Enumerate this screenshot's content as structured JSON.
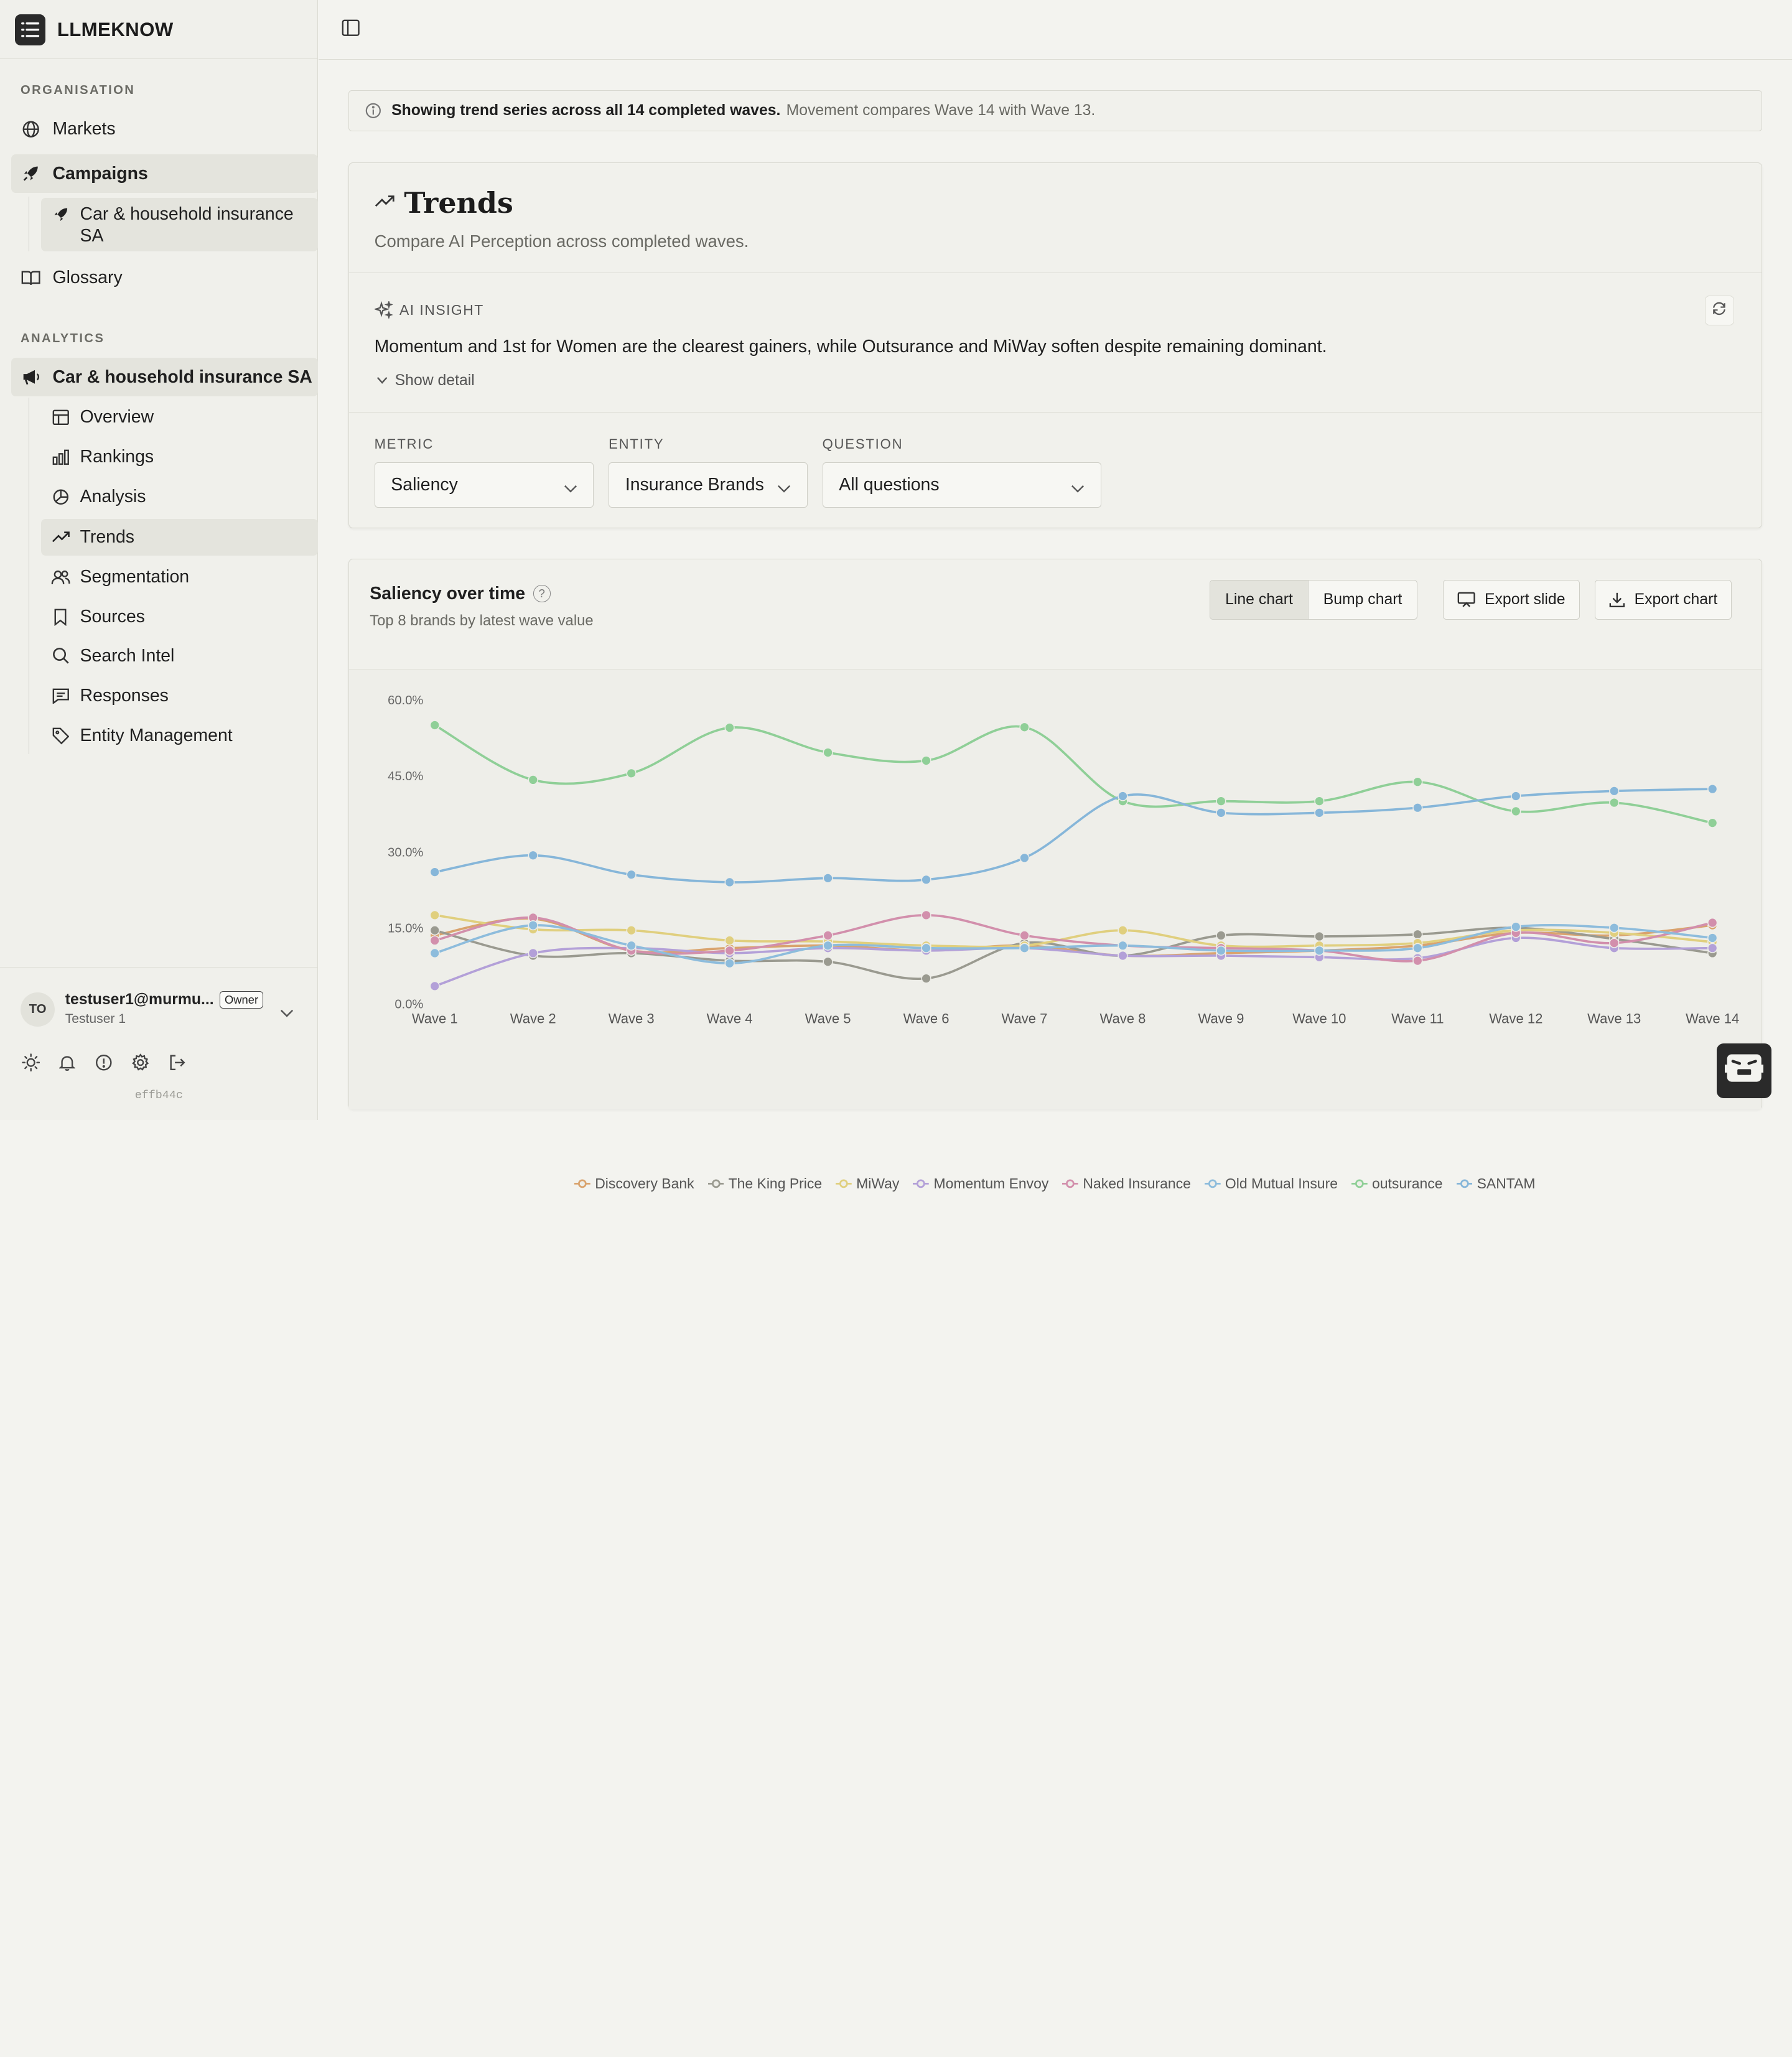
{
  "app": {
    "name": "LLMEKNOW"
  },
  "sidebar": {
    "organisation_label": "ORGANISATION",
    "analytics_label": "ANALYTICS",
    "org_items": [
      {
        "label": "Markets",
        "icon": "globe-icon"
      },
      {
        "label": "Campaigns",
        "icon": "rocket-icon"
      },
      {
        "label": "Car & household insurance SA",
        "icon": "rocket-icon"
      },
      {
        "label": "Glossary",
        "icon": "book-icon"
      }
    ],
    "campaign_group": {
      "label": "Car & household insurance SA",
      "icon": "megaphone-icon"
    },
    "analytics_items": [
      {
        "label": "Overview",
        "icon": "layout-icon"
      },
      {
        "label": "Rankings",
        "icon": "bar-chart-icon"
      },
      {
        "label": "Analysis",
        "icon": "pie-chart-icon"
      },
      {
        "label": "Trends",
        "icon": "trending-up-icon"
      },
      {
        "label": "Segmentation",
        "icon": "users-icon"
      },
      {
        "label": "Sources",
        "icon": "bookmark-icon"
      },
      {
        "label": "Search Intel",
        "icon": "search-icon"
      },
      {
        "label": "Responses",
        "icon": "message-icon"
      },
      {
        "label": "Entity Management",
        "icon": "tag-icon"
      }
    ],
    "user": {
      "initials": "TO",
      "email": "testuser1@murmu...",
      "role": "Owner",
      "name": "Testuser 1"
    },
    "build_id": "effb44c"
  },
  "banner": {
    "strong": "Showing trend series across all 14 completed waves.",
    "muted": "Movement compares Wave 14 with Wave 13."
  },
  "trends": {
    "title": "Trends",
    "subtitle": "Compare AI Perception across completed waves.",
    "ai_label": "AI INSIGHT",
    "ai_text": "Momentum and 1st for Women are the clearest gainers, while Outsurance and MiWay soften despite remaining dominant.",
    "show_detail": "Show detail",
    "filters": {
      "metric_label": "METRIC",
      "metric_value": "Saliency",
      "entity_label": "ENTITY",
      "entity_value": "Insurance Brands",
      "question_label": "QUESTION",
      "question_value": "All questions"
    }
  },
  "chart_card": {
    "title": "Saliency over time",
    "subtitle": "Top 8 brands by latest wave value",
    "toggle": [
      "Line chart",
      "Bump chart"
    ],
    "export_slide": "Export slide",
    "export_chart": "Export chart"
  },
  "chart_data": {
    "type": "line",
    "ylim": [
      0,
      60
    ],
    "y_ticks": [
      "0.0%",
      "15.0%",
      "30.0%",
      "45.0%",
      "60.0%"
    ],
    "x": [
      "Wave 1",
      "Wave 2",
      "Wave 3",
      "Wave 4",
      "Wave 5",
      "Wave 6",
      "Wave 7",
      "Wave 8",
      "Wave 9",
      "Wave 10",
      "Wave 11",
      "Wave 12",
      "Wave 13",
      "Wave 14"
    ],
    "grid": false,
    "legend": "bottom",
    "series": [
      {
        "name": "Discovery Bank",
        "color": "#d9a36e",
        "values": [
          13.5,
          16.8,
          10.5,
          11.0,
          11.5,
          10.5,
          11.5,
          9.5,
          10.0,
          10.5,
          11.5,
          14.0,
          13.5,
          15.5
        ]
      },
      {
        "name": "The King Price",
        "color": "#9a9a90",
        "values": [
          14.5,
          9.5,
          10.0,
          8.5,
          8.3,
          5.0,
          12.0,
          9.5,
          13.5,
          13.3,
          13.7,
          15.0,
          12.8,
          10.0
        ]
      },
      {
        "name": "MiWay",
        "color": "#e0cf7e",
        "values": [
          17.5,
          14.7,
          14.5,
          12.5,
          12.3,
          11.5,
          11.5,
          14.5,
          11.5,
          11.5,
          12.0,
          14.5,
          14.0,
          12.2
        ]
      },
      {
        "name": "Momentum Envoy",
        "color": "#b3a0d8",
        "values": [
          3.5,
          10.0,
          11.0,
          10.0,
          11.0,
          10.5,
          11.0,
          9.5,
          9.5,
          9.2,
          9.0,
          13.0,
          11.0,
          11.0
        ]
      },
      {
        "name": "Naked Insurance",
        "color": "#d28fac",
        "values": [
          12.5,
          17.0,
          10.5,
          10.5,
          13.5,
          17.5,
          13.5,
          11.5,
          11.0,
          10.5,
          8.5,
          14.0,
          12.0,
          16.0
        ]
      },
      {
        "name": "Old Mutual Insure",
        "color": "#8dbcdc",
        "values": [
          10.0,
          15.5,
          11.5,
          8.0,
          11.5,
          11.0,
          11.0,
          11.5,
          10.5,
          10.5,
          11.0,
          15.2,
          15.0,
          13.0
        ]
      },
      {
        "name": "outsurance",
        "color": "#8fcf97",
        "values": [
          55.0,
          44.2,
          45.5,
          54.5,
          49.6,
          48.0,
          54.6,
          40.0,
          40.0,
          40.0,
          43.8,
          38.0,
          39.7,
          35.7
        ]
      },
      {
        "name": "SANTAM",
        "color": "#86b6d9",
        "values": [
          26.0,
          29.3,
          25.5,
          24.0,
          24.8,
          24.5,
          28.8,
          41.0,
          37.7,
          37.7,
          38.7,
          41.0,
          42.0,
          42.4
        ]
      }
    ]
  }
}
